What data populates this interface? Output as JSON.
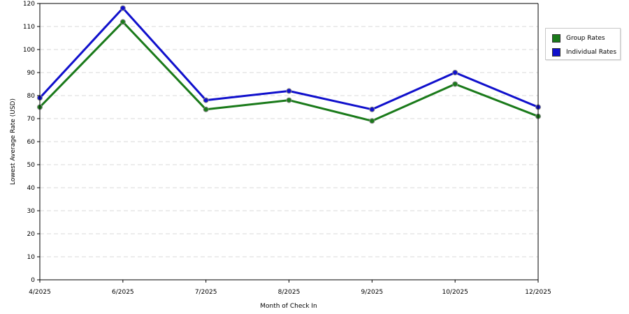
{
  "chart_data": {
    "type": "line",
    "categories": [
      "4/2025",
      "6/2025",
      "7/2025",
      "8/2025",
      "9/2025",
      "10/2025",
      "12/2025"
    ],
    "series": [
      {
        "name": "Group Rates",
        "color": "#1a7a1a",
        "values": [
          75,
          112,
          74,
          78,
          69,
          85,
          71
        ]
      },
      {
        "name": "Individual Rates",
        "color": "#1010cc",
        "values": [
          79,
          118,
          78,
          82,
          74,
          90,
          75
        ]
      }
    ],
    "title": "",
    "xlabel": "Month of Check In",
    "ylabel": "Lowest Average Rate (USD)",
    "ylim": [
      0,
      120
    ],
    "yticks": [
      0,
      10,
      20,
      30,
      40,
      50,
      60,
      70,
      80,
      90,
      100,
      110,
      120
    ],
    "grid": true,
    "legend_position": "top-right"
  }
}
